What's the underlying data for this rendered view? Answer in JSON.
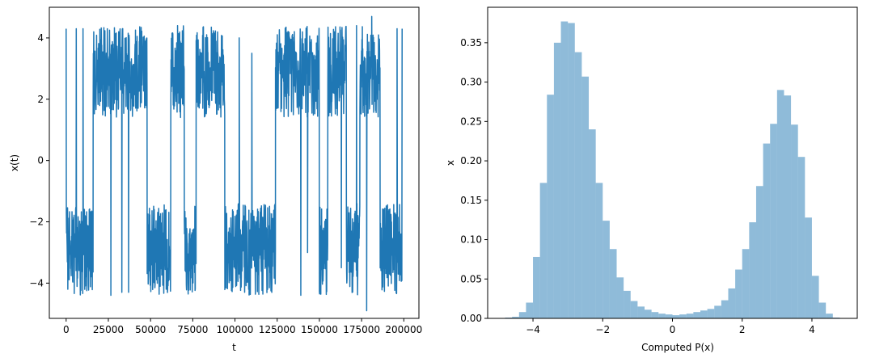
{
  "chart_data": [
    {
      "type": "line",
      "title": "",
      "xlabel": "t",
      "ylabel": "x(t)",
      "xlim": [
        -9950,
        208950
      ],
      "ylim": [
        -5.15,
        5.0
      ],
      "xticks": [
        0,
        25000,
        50000,
        75000,
        100000,
        125000,
        150000,
        175000,
        200000
      ],
      "xtick_labels": [
        "0",
        "25000",
        "50000",
        "75000",
        "100000",
        "125000",
        "150000",
        "175000",
        "200000"
      ],
      "yticks": [
        -4,
        -2,
        0,
        2,
        4
      ],
      "ytick_labels": [
        "−4",
        "−2",
        "0",
        "2",
        "4"
      ],
      "grid": false,
      "color": "#1f77b4",
      "series": [
        {
          "regimes": [
            {
              "from": 0,
              "to": 16000,
              "state": "low"
            },
            {
              "from": 16000,
              "to": 48000,
              "state": "high"
            },
            {
              "from": 48000,
              "to": 62000,
              "state": "low"
            },
            {
              "from": 62000,
              "to": 70000,
              "state": "high"
            },
            {
              "from": 70000,
              "to": 77000,
              "state": "low"
            },
            {
              "from": 77000,
              "to": 94000,
              "state": "high"
            },
            {
              "from": 94000,
              "to": 102000,
              "state": "low"
            },
            {
              "from": 102000,
              "to": 124000,
              "state": "low"
            },
            {
              "from": 124000,
              "to": 150000,
              "state": "high"
            },
            {
              "from": 150000,
              "to": 155000,
              "state": "low"
            },
            {
              "from": 155000,
              "to": 166000,
              "state": "high"
            },
            {
              "from": 166000,
              "to": 174000,
              "state": "low"
            },
            {
              "from": 174000,
              "to": 186000,
              "state": "high"
            },
            {
              "from": 186000,
              "to": 199000,
              "state": "low"
            }
          ],
          "high_band": {
            "min": 1.2,
            "max": 4.5,
            "center": 2.9
          },
          "low_band": {
            "min": -4.5,
            "max": -0.8,
            "center": -2.9
          },
          "spikes": [
            {
              "t": 0,
              "y": 4.3
            },
            {
              "t": 1000,
              "y": -4.2
            },
            {
              "t": 6000,
              "y": 4.3
            },
            {
              "t": 10000,
              "y": 4.3
            },
            {
              "t": 26500,
              "y": -4.4
            },
            {
              "t": 33000,
              "y": -4.3
            },
            {
              "t": 37000,
              "y": -4.3
            },
            {
              "t": 66000,
              "y": 4.4
            },
            {
              "t": 102500,
              "y": 4.0
            },
            {
              "t": 110000,
              "y": 3.5
            },
            {
              "t": 139000,
              "y": -4.4
            },
            {
              "t": 143000,
              "y": -3.0
            },
            {
              "t": 159000,
              "y": 4.2
            },
            {
              "t": 163000,
              "y": -3.5
            },
            {
              "t": 172000,
              "y": 4.4
            },
            {
              "t": 178000,
              "y": -4.9
            },
            {
              "t": 181000,
              "y": 4.7
            },
            {
              "t": 196000,
              "y": 4.3
            },
            {
              "t": 199000,
              "y": 4.3
            }
          ]
        }
      ]
    },
    {
      "type": "bar",
      "title": "",
      "xlabel": "Computed P(x)",
      "ylabel": "x",
      "xlim": [
        -5.3,
        5.3
      ],
      "ylim": [
        0,
        0.395
      ],
      "xticks": [
        -4,
        -2,
        0,
        2,
        4
      ],
      "xtick_labels": [
        "−4",
        "−2",
        "0",
        "2",
        "4"
      ],
      "yticks": [
        0,
        0.05,
        0.1,
        0.15,
        0.2,
        0.25,
        0.3,
        0.35
      ],
      "ytick_labels": [
        "0.00",
        "0.05",
        "0.10",
        "0.15",
        "0.20",
        "0.25",
        "0.30",
        "0.35"
      ],
      "grid": false,
      "color": "#1f77b4",
      "opacity": 0.5,
      "bin_edges": [
        -4.8,
        -4.6,
        -4.4,
        -4.2,
        -4.0,
        -3.8,
        -3.6,
        -3.4,
        -3.2,
        -3.0,
        -2.8,
        -2.6,
        -2.4,
        -2.2,
        -2.0,
        -1.8,
        -1.6,
        -1.4,
        -1.2,
        -1.0,
        -0.8,
        -0.6,
        -0.4,
        -0.2,
        0.0,
        0.2,
        0.4,
        0.6,
        0.8,
        1.0,
        1.2,
        1.4,
        1.6,
        1.8,
        2.0,
        2.2,
        2.4,
        2.6,
        2.8,
        3.0,
        3.2,
        3.4,
        3.6,
        3.8,
        4.0,
        4.2,
        4.4,
        4.6,
        4.8
      ],
      "values": [
        0.001,
        0.002,
        0.008,
        0.02,
        0.078,
        0.172,
        0.284,
        0.35,
        0.377,
        0.375,
        0.338,
        0.307,
        0.24,
        0.172,
        0.124,
        0.088,
        0.052,
        0.035,
        0.022,
        0.015,
        0.011,
        0.008,
        0.006,
        0.005,
        0.004,
        0.005,
        0.006,
        0.008,
        0.01,
        0.012,
        0.016,
        0.023,
        0.038,
        0.062,
        0.088,
        0.122,
        0.168,
        0.222,
        0.247,
        0.29,
        0.283,
        0.246,
        0.205,
        0.128,
        0.054,
        0.02,
        0.006,
        0.001
      ]
    }
  ]
}
